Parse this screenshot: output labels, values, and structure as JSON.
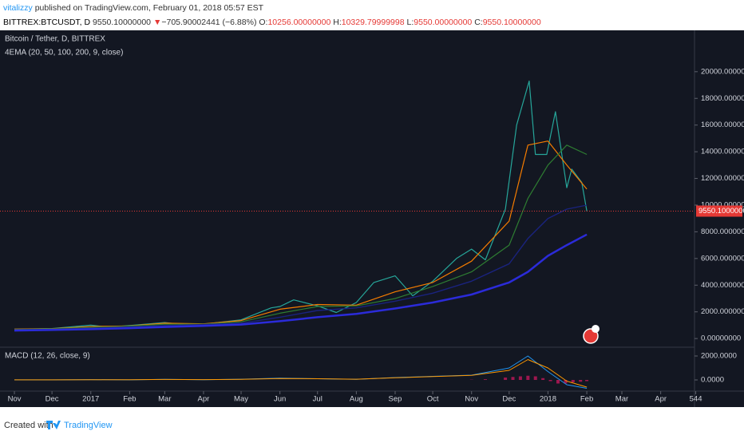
{
  "header": {
    "author": "vitalizzy",
    "published": "published on TradingView.com, February 01, 2018 05:57 EST",
    "symbol": "BITTREX:BTCUSDT, D",
    "last": "9550.10000000",
    "arrow": "▼",
    "change": "−705.90002441 (−6.88%)",
    "open_label": "O:",
    "open": "10256.00000000",
    "high_label": "H:",
    "high": "10329.79999998",
    "low_label": "L:",
    "low": "9550.00000000",
    "close_label": "C:",
    "close": "9550.10000000"
  },
  "chart_data": [
    {
      "type": "line",
      "title": "Bitcoin / Tether, D, BITTREX",
      "subtitle": "4EMA (20, 50, 100, 200, 9, close)",
      "xlim": [
        -11.5,
        543
      ],
      "xticks": [
        {
          "value": 0,
          "label": "Nov"
        },
        {
          "value": 30,
          "label": "Dec"
        },
        {
          "value": 61,
          "label": "2017"
        },
        {
          "value": 92,
          "label": "Feb"
        },
        {
          "value": 120,
          "label": "Mar"
        },
        {
          "value": 151,
          "label": "Apr"
        },
        {
          "value": 181,
          "label": "May"
        },
        {
          "value": 212,
          "label": "Jun"
        },
        {
          "value": 242,
          "label": "Jul"
        },
        {
          "value": 273,
          "label": "Aug"
        },
        {
          "value": 304,
          "label": "Sep"
        },
        {
          "value": 334,
          "label": "Oct"
        },
        {
          "value": 365,
          "label": "Nov"
        },
        {
          "value": 395,
          "label": "Dec"
        },
        {
          "value": 426,
          "label": "2018"
        },
        {
          "value": 457,
          "label": "Feb"
        },
        {
          "value": 485,
          "label": "Mar"
        },
        {
          "value": 516,
          "label": "Apr"
        },
        544
      ],
      "ylim": [
        -650,
        23100
      ],
      "yticks": [
        {
          "value": 0,
          "label": "0.00000000"
        },
        {
          "value": 2000,
          "label": "2000.00000000"
        },
        {
          "value": 4000,
          "label": "4000.00000000"
        },
        {
          "value": 6000,
          "label": "6000.00000000"
        },
        {
          "value": 8000,
          "label": "8000.00000000"
        },
        {
          "value": 10000,
          "label": "10000.00000000"
        },
        {
          "value": 12000,
          "label": "12000.00000000"
        },
        {
          "value": 14000,
          "label": "14000.00000000"
        },
        {
          "value": 16000,
          "label": "16000.00000000"
        },
        {
          "value": 18000,
          "label": "18000.00000000"
        },
        {
          "value": 20000,
          "label": "20000.00000000"
        }
      ],
      "grid": false,
      "series": [
        {
          "color": "#26a69a",
          "width": 1.2,
          "x": [
            0,
            30,
            61,
            75,
            92,
            120,
            139,
            151,
            181,
            205,
            212,
            223,
            242,
            257,
            273,
            287,
            304,
            318,
            334,
            353,
            365,
            376,
            392,
            401,
            411,
            416,
            425,
            432,
            441,
            445,
            453,
            457
          ],
          "values": [
            700,
            750,
            1000,
            850,
            970,
            1200,
            1000,
            1080,
            1400,
            2300,
            2400,
            2900,
            2450,
            1950,
            2700,
            4200,
            4700,
            3200,
            4300,
            6000,
            6700,
            5900,
            9700,
            16000,
            19300,
            13800,
            13800,
            17000,
            11300,
            12700,
            11700,
            9550
          ]
        },
        {
          "color": "#f57c00",
          "width": 1.2,
          "x": [
            0,
            30,
            61,
            92,
            120,
            151,
            181,
            212,
            242,
            273,
            304,
            334,
            365,
            395,
            410,
            426,
            441,
            457
          ],
          "values": [
            700,
            740,
            900,
            950,
            1150,
            1100,
            1350,
            2200,
            2550,
            2500,
            3500,
            4200,
            5800,
            8800,
            14500,
            14800,
            13000,
            11200
          ]
        },
        {
          "color": "#2e7d32",
          "width": 1.2,
          "x": [
            0,
            30,
            61,
            92,
            120,
            151,
            181,
            212,
            242,
            273,
            304,
            334,
            365,
            395,
            410,
            426,
            441,
            457
          ],
          "values": [
            680,
            720,
            840,
            930,
            1080,
            1080,
            1250,
            1900,
            2400,
            2450,
            3000,
            3900,
            5000,
            7000,
            10500,
            13000,
            14500,
            13800
          ]
        },
        {
          "color": "#1a237e",
          "width": 1.4,
          "x": [
            0,
            30,
            61,
            92,
            120,
            151,
            181,
            212,
            242,
            273,
            304,
            334,
            365,
            395,
            410,
            426,
            441,
            457
          ],
          "values": [
            650,
            690,
            780,
            870,
            980,
            1050,
            1150,
            1600,
            2100,
            2300,
            2800,
            3400,
            4300,
            5600,
            7500,
            9000,
            9700,
            10000
          ]
        },
        {
          "color": "#2b2bd9",
          "width": 2.5,
          "x": [
            0,
            30,
            61,
            92,
            120,
            151,
            181,
            212,
            242,
            273,
            304,
            334,
            365,
            395,
            410,
            426,
            441,
            457
          ],
          "values": [
            600,
            640,
            700,
            780,
            870,
            950,
            1050,
            1300,
            1600,
            1850,
            2250,
            2700,
            3300,
            4200,
            5000,
            6200,
            7000,
            7800
          ]
        }
      ],
      "last_price": {
        "value": 9550.1,
        "label": "9550.10000000",
        "color": "#e53935"
      }
    },
    {
      "type": "macd",
      "title": "MACD (12, 26, close, 9)",
      "ylim": [
        -933,
        2733
      ],
      "yticks": [
        {
          "value": 0,
          "label": "0.0000"
        },
        {
          "value": 2000,
          "label": "2000.0000"
        }
      ],
      "series": [
        {
          "color": "#2196f3",
          "width": 1,
          "x": [
            0,
            30,
            61,
            92,
            120,
            151,
            181,
            212,
            242,
            273,
            304,
            334,
            365,
            395,
            410,
            426,
            441,
            457
          ],
          "values": [
            5,
            10,
            30,
            10,
            50,
            20,
            60,
            150,
            100,
            50,
            200,
            300,
            400,
            1000,
            2000,
            700,
            -400,
            -700
          ]
        },
        {
          "color": "#ff9800",
          "width": 1,
          "x": [
            0,
            30,
            61,
            92,
            120,
            151,
            181,
            212,
            242,
            273,
            304,
            334,
            365,
            395,
            410,
            426,
            441,
            457
          ],
          "values": [
            4,
            8,
            20,
            15,
            40,
            25,
            50,
            120,
            100,
            60,
            180,
            280,
            380,
            800,
            1700,
            1000,
            -100,
            -600
          ]
        }
      ],
      "histogram": {
        "pos_color": "#c2185b",
        "neg_color": "#c2185b",
        "x": [
          365,
          376,
          392,
          398,
          404,
          410,
          416,
          422,
          428,
          434,
          440,
          446,
          452,
          457
        ],
        "values": [
          20,
          60,
          200,
          250,
          300,
          350,
          300,
          150,
          -100,
          -300,
          -300,
          -200,
          -150,
          -100
        ]
      }
    }
  ],
  "footer": {
    "text": "Created with",
    "brand": "TradingView"
  }
}
